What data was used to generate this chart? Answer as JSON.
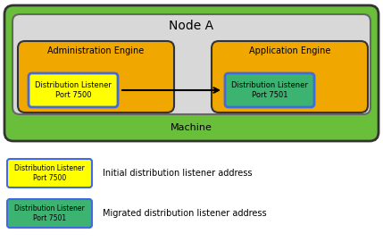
{
  "fig_width": 4.29,
  "fig_height": 2.8,
  "dpi": 100,
  "bg_color": "#ffffff",
  "machine_color": "#6abf3a",
  "machine_label": "Machine",
  "node_color": "#d8d8d8",
  "node_label": "Node A",
  "admin_color": "#f0a800",
  "admin_label": "Administration Engine",
  "app_color": "#f0a800",
  "app_label": "Application Engine",
  "dl_7500_color": "#ffff00",
  "dl_7500_border": "#4169e1",
  "dl_7500_label": "Distribution Listener\nPort 7500",
  "dl_7501_color": "#3cb371",
  "dl_7501_border": "#4169e1",
  "dl_7501_label": "Distribution Listener\nPort 7501",
  "legend1_label": "Initial distribution listener address",
  "legend2_label": "Migrated distribution listener address"
}
